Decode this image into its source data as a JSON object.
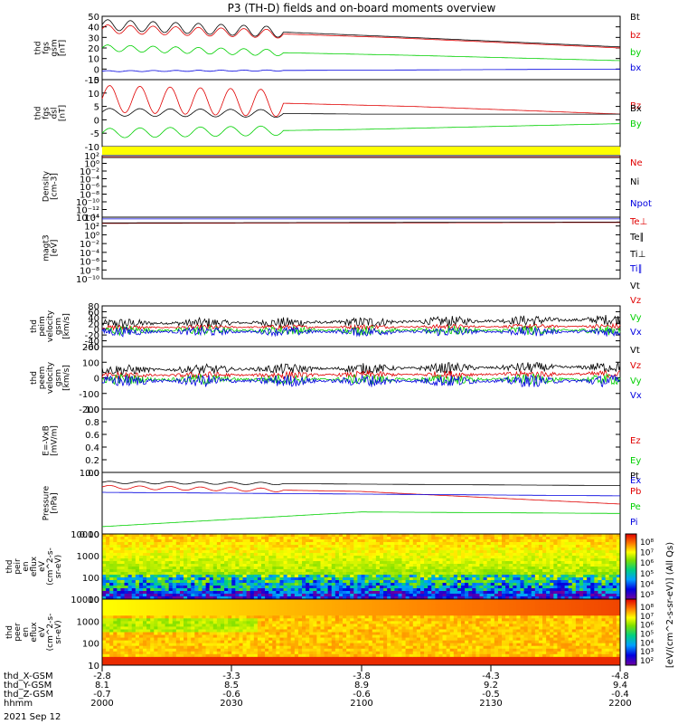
{
  "title": "P3 (TH-D) fields and on-board moments overview",
  "colors": {
    "black": "#000000",
    "red": "#e00000",
    "green": "#00d000",
    "blue": "#0000e0",
    "yellow": "#ffff00"
  },
  "chart_data": [
    {
      "type": "line",
      "panel": "fgs_bt",
      "ylabel": [
        "thd",
        "fgs",
        "gsm",
        "[nT]"
      ],
      "yticks": [
        "50",
        "40",
        "30",
        "20",
        "10",
        "0",
        "-10"
      ],
      "ylim": [
        -10,
        50
      ],
      "legend": [
        "Bt",
        "bz",
        "by",
        "bx"
      ],
      "series": [
        {
          "name": "Bt",
          "color": "black",
          "baseline": [
            [
              0,
              42
            ],
            [
              0.3,
              36
            ],
            [
              0.55,
              31
            ],
            [
              1,
              21
            ]
          ],
          "osc": {
            "amp": 5,
            "periods": 8,
            "end": 0.35
          }
        },
        {
          "name": "bz",
          "color": "red",
          "baseline": [
            [
              0,
              38
            ],
            [
              0.3,
              34
            ],
            [
              0.55,
              30
            ],
            [
              1,
              20
            ]
          ],
          "osc": {
            "amp": 4,
            "periods": 8,
            "end": 0.35
          }
        },
        {
          "name": "by",
          "color": "green",
          "baseline": [
            [
              0,
              20
            ],
            [
              0.3,
              16
            ],
            [
              0.6,
              13
            ],
            [
              1,
              8
            ]
          ],
          "osc": {
            "amp": 3,
            "periods": 8,
            "end": 0.35
          }
        },
        {
          "name": "bx",
          "color": "blue",
          "baseline": [
            [
              0,
              -2
            ],
            [
              0.5,
              -1
            ],
            [
              1,
              0
            ]
          ],
          "osc": {
            "amp": 0.5,
            "periods": 8,
            "end": 0.35
          }
        }
      ]
    },
    {
      "type": "line",
      "panel": "fgs_b",
      "ylabel": [
        "thd",
        "fgs",
        "dsl",
        "[nT]"
      ],
      "yticks": [
        "15",
        "10",
        "5",
        "0",
        "-5",
        "-10"
      ],
      "ylim": [
        -15,
        20
      ],
      "legend": [
        "Bz",
        "Bx",
        "By"
      ],
      "series": [
        {
          "name": "Bz",
          "color": "red",
          "baseline": [
            [
              0,
              10
            ],
            [
              0.3,
              8
            ],
            [
              0.6,
              6
            ],
            [
              1,
              2
            ]
          ],
          "osc": {
            "amp": 7,
            "periods": 6,
            "end": 0.35
          }
        },
        {
          "name": "Bx",
          "color": "black",
          "baseline": [
            [
              0,
              3
            ],
            [
              0.5,
              2
            ],
            [
              1,
              2
            ]
          ],
          "osc": {
            "amp": 2,
            "periods": 6,
            "end": 0.35
          }
        },
        {
          "name": "By",
          "color": "green",
          "baseline": [
            [
              0,
              -8
            ],
            [
              0.5,
              -6
            ],
            [
              1,
              -3
            ]
          ],
          "osc": {
            "amp": 2.5,
            "periods": 6,
            "end": 0.35
          }
        }
      ]
    },
    {
      "type": "line",
      "panel": "density",
      "log": true,
      "ylabel": [
        "Density",
        "[cm-3]"
      ],
      "yticks": [
        "10²",
        "10⁰",
        "10⁻²",
        "10⁻⁴",
        "10⁻⁶",
        "10⁻⁸",
        "10⁻¹⁰",
        "10⁻¹²",
        "10⁻¹⁴"
      ],
      "ylim": [
        -14,
        2
      ],
      "legend": [
        "Ne",
        "Ni",
        "Npot"
      ],
      "series": [
        {
          "name": "Ne",
          "color": "red",
          "baseline": [
            [
              0,
              1.6
            ],
            [
              1,
              1.6
            ]
          ]
        },
        {
          "name": "Ni",
          "color": "black",
          "baseline": [
            [
              0,
              1.5
            ],
            [
              1,
              1.5
            ]
          ]
        }
      ]
    },
    {
      "type": "line",
      "panel": "temperature",
      "log": true,
      "ylabel": [
        "magt3",
        "[eV]"
      ],
      "yticks": [
        "10⁴",
        "10²",
        "10⁰",
        "10⁻²",
        "10⁻⁴",
        "10⁻⁶",
        "10⁻⁸",
        "10⁻¹⁰"
      ],
      "ylim": [
        -10,
        4
      ],
      "legend": [
        "Te⊥",
        "Te∥",
        "Ti⊥",
        "Ti∥"
      ],
      "series": [
        {
          "name": "Ti∥",
          "color": "blue",
          "baseline": [
            [
              0,
              3.6
            ],
            [
              1,
              3.6
            ]
          ]
        },
        {
          "name": "Te⊥",
          "color": "red",
          "baseline": [
            [
              0,
              2.6
            ],
            [
              1,
              2.8
            ]
          ]
        },
        {
          "name": "Te∥",
          "color": "black",
          "baseline": [
            [
              0,
              2.7
            ],
            [
              1,
              2.9
            ]
          ]
        }
      ]
    },
    {
      "type": "line",
      "panel": "peim_velocity",
      "ylabel": [
        "thd",
        "peim",
        "velocity",
        "gsm",
        "[km/s]"
      ],
      "yticks": [
        "80",
        "60",
        "40",
        "20",
        "0",
        "-20",
        "-40",
        "-60"
      ],
      "ylim": [
        -60,
        90
      ],
      "legend": [
        "Vt",
        "Vz",
        "Vy",
        "Vx"
      ],
      "series": [
        {
          "name": "Vt",
          "color": "black",
          "baseline": [
            [
              0,
              25
            ],
            [
              0.5,
              30
            ],
            [
              1,
              40
            ]
          ],
          "noise": 20
        },
        {
          "name": "Vz",
          "color": "red",
          "baseline": [
            [
              0,
              10
            ],
            [
              1,
              15
            ]
          ],
          "noise": 10
        },
        {
          "name": "Vy",
          "color": "green",
          "baseline": [
            [
              0,
              0
            ],
            [
              1,
              0
            ]
          ],
          "noise": 18
        },
        {
          "name": "Vx",
          "color": "blue",
          "baseline": [
            [
              0,
              -5
            ],
            [
              1,
              -5
            ]
          ],
          "noise": 18
        }
      ]
    },
    {
      "type": "line",
      "panel": "peem_velocity",
      "ylabel": [
        "thd",
        "peem",
        "velocity",
        "gsm",
        "[km/s]"
      ],
      "yticks": [
        "200",
        "100",
        "0",
        "-100",
        "-200"
      ],
      "ylim": [
        -200,
        200
      ],
      "legend": [
        "Vt",
        "Vz",
        "Vy",
        "Vx"
      ],
      "series": [
        {
          "name": "Vt",
          "color": "black",
          "baseline": [
            [
              0,
              50
            ],
            [
              0.5,
              60
            ],
            [
              1,
              70
            ]
          ],
          "noise": 35
        },
        {
          "name": "Vz",
          "color": "red",
          "baseline": [
            [
              0,
              15
            ],
            [
              1,
              25
            ]
          ],
          "noise": 25
        },
        {
          "name": "Vy",
          "color": "green",
          "baseline": [
            [
              0,
              -10
            ],
            [
              1,
              -10
            ]
          ],
          "noise": 35
        },
        {
          "name": "Vx",
          "color": "blue",
          "baseline": [
            [
              0,
              -20
            ],
            [
              1,
              -20
            ]
          ],
          "noise": 40
        }
      ]
    },
    {
      "type": "line",
      "panel": "efield",
      "ylabel": [
        "E=-VxB",
        "[mV/m]"
      ],
      "yticks": [
        "1.0",
        "0.8",
        "0.6",
        "0.4",
        "0.2",
        "0.0"
      ],
      "ylim": [
        0,
        1
      ],
      "legend": [
        "Ez",
        "Ey",
        "Ex"
      ],
      "series": []
    },
    {
      "type": "line",
      "panel": "pressure",
      "log": true,
      "ylabel": [
        "Pressure",
        "[nPa]"
      ],
      "yticks": [
        "1.00",
        "0.10"
      ],
      "ylim": [
        -1.7,
        0.4
      ],
      "legend": [
        "Pt",
        "Pb",
        "Pe",
        "Pi"
      ],
      "series": [
        {
          "name": "Pt",
          "color": "black",
          "baseline": [
            [
              0,
              0.06
            ],
            [
              0.5,
              0.0
            ],
            [
              1,
              -0.05
            ]
          ],
          "osc": {
            "amp": 0.04,
            "periods": 6,
            "end": 0.35
          }
        },
        {
          "name": "Pb",
          "color": "red",
          "baseline": [
            [
              0,
              -0.1
            ],
            [
              0.5,
              -0.25
            ],
            [
              1,
              -0.68
            ]
          ],
          "osc": {
            "amp": 0.06,
            "periods": 6,
            "end": 0.35
          }
        },
        {
          "name": "Pi",
          "color": "blue",
          "baseline": [
            [
              0,
              -0.28
            ],
            [
              1,
              -0.4
            ]
          ]
        },
        {
          "name": "Pe",
          "color": "green",
          "baseline": [
            [
              0,
              -1.45
            ],
            [
              0.5,
              -0.95
            ],
            [
              1,
              -1.0
            ]
          ]
        }
      ]
    },
    {
      "type": "heatmap",
      "panel": "peir",
      "ylabel": [
        "thd",
        "peir",
        "en",
        "eflux",
        "eV",
        "(cm^2-s-",
        "sr-eV)"
      ],
      "yticks": [
        "10000",
        "1000",
        "100",
        "10"
      ],
      "colorbar": {
        "ticks": [
          "10⁸",
          "10⁷",
          "10⁶",
          "10⁵",
          "10⁴",
          "10³"
        ]
      }
    },
    {
      "type": "heatmap",
      "panel": "peer",
      "ylabel": [
        "thd",
        "peer",
        "en",
        "eflux",
        "eV",
        "(cm^2-s-",
        "sr-eV)"
      ],
      "yticks": [
        "10000",
        "1000",
        "100",
        "10"
      ],
      "colorbar": {
        "ticks": [
          "10⁸",
          "10⁷",
          "10⁶",
          "10⁵",
          "10⁴",
          "10³",
          "10²"
        ],
        "label": "[eV/(cm^2-s-sr-eV)] (All Qs)"
      }
    }
  ],
  "xaxis": {
    "rows": [
      {
        "label": "thd_X-GSM",
        "values": [
          "-2.8",
          "-3.3",
          "-3.8",
          "-4.3",
          "-4.8"
        ]
      },
      {
        "label": "thd_Y-GSM",
        "values": [
          "8.1",
          "8.5",
          "8.9",
          "9.2",
          "9.4"
        ]
      },
      {
        "label": "thd_Z-GSM",
        "values": [
          "-0.7",
          "-0.6",
          "-0.6",
          "-0.5",
          "-0.4"
        ]
      },
      {
        "label": "hhmm",
        "values": [
          "2000",
          "2030",
          "2100",
          "2130",
          "2200"
        ]
      }
    ],
    "date": "2021 Sep 12"
  }
}
